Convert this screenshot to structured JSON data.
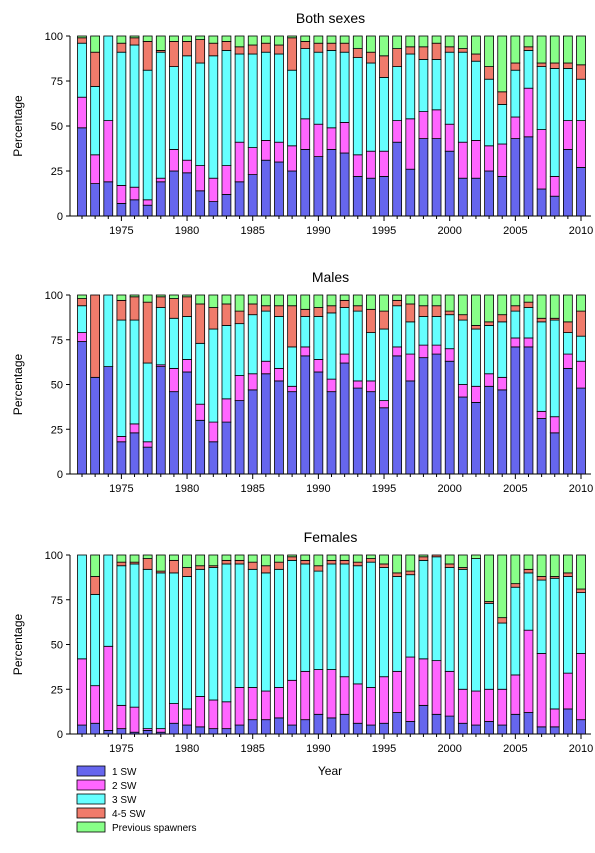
{
  "x_axis_title": "Year",
  "legend": [
    {
      "name": "1 SW",
      "color": "#6666EE"
    },
    {
      "name": "2 SW",
      "color": "#FF66FF"
    },
    {
      "name": "3 SW",
      "color": "#66FFFF"
    },
    {
      "name": "4-5 SW",
      "color": "#F07B6B"
    },
    {
      "name": "Previous spawners",
      "color": "#88FF88"
    }
  ],
  "chart_data": [
    {
      "type": "bar",
      "stacked": true,
      "title": "Both sexes",
      "ylabel": "Percentage",
      "xlabel": "",
      "ylim": [
        0,
        100
      ],
      "yticks": [
        0,
        25,
        50,
        75,
        100
      ],
      "xticks": [
        1975,
        1980,
        1985,
        1990,
        1995,
        2000,
        2005,
        2010
      ],
      "categories": [
        1972,
        1973,
        1974,
        1975,
        1976,
        1977,
        1978,
        1979,
        1980,
        1981,
        1982,
        1983,
        1984,
        1985,
        1986,
        1987,
        1988,
        1989,
        1990,
        1991,
        1992,
        1993,
        1994,
        1995,
        1996,
        1997,
        1998,
        1999,
        2000,
        2001,
        2002,
        2003,
        2004,
        2005,
        2006,
        2007,
        2008,
        2009,
        2010
      ],
      "series": [
        {
          "name": "1 SW",
          "values": [
            49,
            18,
            19,
            7,
            9,
            6,
            19,
            25,
            24,
            14,
            8,
            12,
            19,
            23,
            31,
            30,
            25,
            37,
            33,
            37,
            35,
            22,
            21,
            22,
            41,
            26,
            43,
            43,
            36,
            21,
            21,
            25,
            22,
            43,
            44,
            15,
            11,
            37,
            27
          ]
        },
        {
          "name": "2 SW",
          "values": [
            17,
            16,
            34,
            10,
            7,
            3,
            2,
            12,
            7,
            14,
            13,
            16,
            22,
            15,
            11,
            11,
            14,
            17,
            18,
            12,
            17,
            12,
            15,
            14,
            12,
            28,
            15,
            16,
            15,
            20,
            21,
            14,
            18,
            12,
            27,
            33,
            11,
            16,
            26
          ]
        },
        {
          "name": "3 SW",
          "values": [
            30,
            38,
            47,
            74,
            79,
            72,
            70,
            46,
            58,
            57,
            68,
            64,
            49,
            52,
            49,
            49,
            42,
            39,
            40,
            43,
            39,
            54,
            49,
            41,
            30,
            36,
            29,
            28,
            40,
            50,
            44,
            37,
            22,
            26,
            21,
            35,
            60,
            29,
            23
          ]
        },
        {
          "name": "4-5 SW",
          "values": [
            3,
            19,
            0,
            5,
            4,
            16,
            1,
            14,
            8,
            13,
            7,
            5,
            4,
            5,
            5,
            5,
            18,
            4,
            5,
            4,
            5,
            5,
            6,
            12,
            10,
            4,
            7,
            9,
            3,
            2,
            4,
            7,
            7,
            4,
            2,
            2,
            3,
            3,
            8
          ]
        },
        {
          "name": "Previous spawners",
          "values": [
            1,
            9,
            0,
            4,
            1,
            3,
            8,
            3,
            3,
            2,
            4,
            3,
            6,
            5,
            4,
            5,
            1,
            3,
            4,
            4,
            4,
            7,
            9,
            11,
            7,
            6,
            6,
            4,
            6,
            7,
            10,
            17,
            31,
            15,
            6,
            15,
            15,
            15,
            16
          ]
        }
      ]
    },
    {
      "type": "bar",
      "stacked": true,
      "title": "Males",
      "ylabel": "Percentage",
      "xlabel": "",
      "ylim": [
        0,
        100
      ],
      "yticks": [
        0,
        25,
        50,
        75,
        100
      ],
      "xticks": [
        1975,
        1980,
        1985,
        1990,
        1995,
        2000,
        2005,
        2010
      ],
      "categories": [
        1972,
        1973,
        1974,
        1975,
        1976,
        1977,
        1978,
        1979,
        1980,
        1981,
        1982,
        1983,
        1984,
        1985,
        1986,
        1987,
        1988,
        1989,
        1990,
        1991,
        1992,
        1993,
        1994,
        1995,
        1996,
        1997,
        1998,
        1999,
        2000,
        2001,
        2002,
        2003,
        2004,
        2005,
        2006,
        2007,
        2008,
        2009,
        2010
      ],
      "series": [
        {
          "name": "1 SW",
          "values": [
            74,
            54,
            60,
            18,
            23,
            15,
            60,
            46,
            57,
            30,
            18,
            29,
            41,
            47,
            56,
            52,
            46,
            66,
            57,
            46,
            62,
            48,
            46,
            37,
            66,
            52,
            65,
            67,
            63,
            43,
            40,
            49,
            47,
            71,
            71,
            31,
            23,
            59,
            48
          ]
        },
        {
          "name": "2 SW",
          "values": [
            5,
            0,
            0,
            3,
            5,
            3,
            1,
            13,
            7,
            9,
            11,
            13,
            14,
            9,
            7,
            7,
            3,
            5,
            7,
            7,
            5,
            4,
            6,
            4,
            5,
            15,
            7,
            5,
            7,
            7,
            9,
            7,
            7,
            5,
            5,
            4,
            9,
            8,
            15
          ]
        },
        {
          "name": "3 SW",
          "values": [
            15,
            0,
            40,
            65,
            58,
            44,
            32,
            28,
            24,
            34,
            52,
            41,
            29,
            33,
            28,
            29,
            22,
            17,
            24,
            37,
            26,
            39,
            27,
            40,
            23,
            18,
            16,
            16,
            19,
            36,
            32,
            27,
            31,
            15,
            17,
            50,
            54,
            12,
            14
          ]
        },
        {
          "name": "4-5 SW",
          "values": [
            4,
            46,
            0,
            11,
            13,
            34,
            6,
            11,
            11,
            22,
            12,
            12,
            7,
            6,
            3,
            6,
            23,
            4,
            5,
            4,
            4,
            3,
            13,
            10,
            3,
            10,
            6,
            6,
            2,
            3,
            2,
            2,
            4,
            3,
            3,
            2,
            1,
            6,
            14
          ]
        },
        {
          "name": "Previous spawners",
          "values": [
            2,
            0,
            0,
            3,
            1,
            4,
            1,
            2,
            1,
            5,
            7,
            5,
            9,
            5,
            6,
            6,
            6,
            8,
            7,
            6,
            3,
            6,
            8,
            9,
            3,
            5,
            6,
            6,
            9,
            11,
            17,
            15,
            11,
            6,
            4,
            13,
            13,
            15,
            9
          ]
        }
      ]
    },
    {
      "type": "bar",
      "stacked": true,
      "title": "Females",
      "ylabel": "Percentage",
      "xlabel": "",
      "ylim": [
        0,
        100
      ],
      "yticks": [
        0,
        25,
        50,
        75,
        100
      ],
      "xticks": [
        1975,
        1980,
        1985,
        1990,
        1995,
        2000,
        2005,
        2010
      ],
      "categories": [
        1972,
        1973,
        1974,
        1975,
        1976,
        1977,
        1978,
        1979,
        1980,
        1981,
        1982,
        1983,
        1984,
        1985,
        1986,
        1987,
        1988,
        1989,
        1990,
        1991,
        1992,
        1993,
        1994,
        1995,
        1996,
        1997,
        1998,
        1999,
        2000,
        2001,
        2002,
        2003,
        2004,
        2005,
        2006,
        2007,
        2008,
        2009,
        2010
      ],
      "series": [
        {
          "name": "1 SW",
          "values": [
            5,
            6,
            2,
            3,
            1,
            2,
            1,
            6,
            5,
            4,
            3,
            3,
            5,
            8,
            8,
            9,
            5,
            8,
            11,
            9,
            11,
            6,
            5,
            6,
            12,
            7,
            16,
            11,
            10,
            6,
            5,
            7,
            5,
            11,
            12,
            4,
            4,
            14,
            8
          ]
        },
        {
          "name": "2 SW",
          "values": [
            37,
            21,
            47,
            13,
            14,
            1,
            2,
            11,
            9,
            17,
            16,
            15,
            21,
            18,
            16,
            17,
            25,
            27,
            25,
            27,
            21,
            22,
            21,
            26,
            23,
            36,
            26,
            30,
            25,
            19,
            19,
            18,
            20,
            22,
            46,
            41,
            10,
            20,
            37
          ]
        },
        {
          "name": "3 SW",
          "values": [
            58,
            51,
            51,
            78,
            80,
            89,
            87,
            73,
            74,
            71,
            74,
            77,
            69,
            66,
            66,
            66,
            67,
            60,
            55,
            59,
            63,
            66,
            70,
            61,
            53,
            46,
            55,
            58,
            58,
            67,
            74,
            48,
            37,
            49,
            32,
            41,
            73,
            54,
            34
          ]
        },
        {
          "name": "4-5 SW",
          "values": [
            0,
            10,
            0,
            2,
            1,
            6,
            1,
            7,
            5,
            2,
            1,
            2,
            2,
            4,
            4,
            4,
            2,
            2,
            3,
            2,
            2,
            2,
            2,
            2,
            2,
            2,
            2,
            1,
            2,
            1,
            0,
            1,
            3,
            2,
            2,
            2,
            1,
            2,
            2
          ]
        },
        {
          "name": "Previous spawners",
          "values": [
            0,
            12,
            0,
            4,
            4,
            2,
            9,
            3,
            7,
            6,
            6,
            3,
            3,
            4,
            6,
            4,
            1,
            3,
            6,
            3,
            3,
            4,
            2,
            5,
            10,
            9,
            1,
            0,
            5,
            7,
            2,
            26,
            35,
            16,
            8,
            12,
            12,
            10,
            19
          ]
        }
      ]
    }
  ]
}
